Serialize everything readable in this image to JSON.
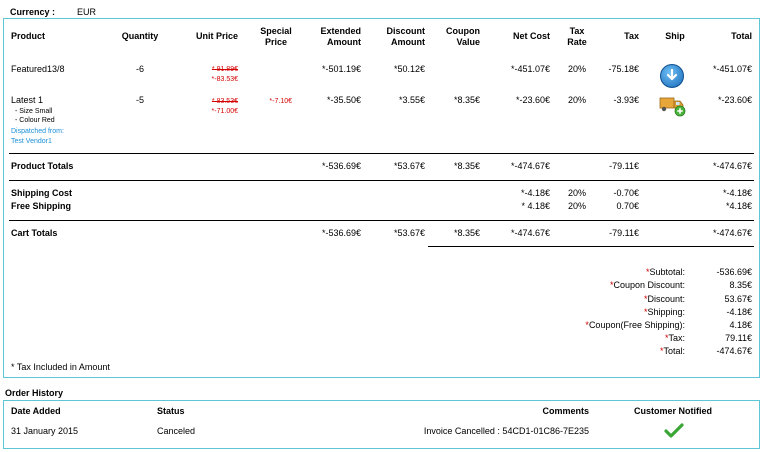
{
  "currency": {
    "label": "Currency :",
    "value": "EUR"
  },
  "headers": {
    "product": "Product",
    "quantity": "Quantity",
    "unit_price": "Unit Price",
    "special_price_1": "Special",
    "special_price_2": "Price",
    "extended_1": "Extended",
    "extended_2": "Amount",
    "discount_1": "Discount",
    "discount_2": "Amount",
    "coupon_1": "Coupon",
    "coupon_2": "Value",
    "net_cost": "Net Cost",
    "tax_rate_1": "Tax",
    "tax_rate_2": "Rate",
    "tax": "Tax",
    "ship": "Ship",
    "total": "Total"
  },
  "rows": [
    {
      "product": "Featured13/8",
      "quantity": "-6",
      "unit_price_orig": "* 91.89€",
      "unit_price_new": "*-83.53€",
      "special_price": "",
      "extended": "*-501.19€",
      "discount": "*50.12€",
      "coupon": "",
      "net_cost": "*-451.07€",
      "tax_rate": "20%",
      "tax": "-75.18€",
      "ship_icon": "download-circle-icon",
      "total": "*-451.07€"
    },
    {
      "product": "Latest 1",
      "attr1": "- Size Small",
      "attr2": "- Colour Red",
      "dispatched_label": "Dispatched from:",
      "dispatched_vendor": "Test Vendor1",
      "quantity": "-5",
      "unit_price_orig": "* 83.53€",
      "unit_price_new": "*-71.00€",
      "special_price": "*-7.10€",
      "extended": "*-35.50€",
      "discount": "*3.55€",
      "coupon": "*8.35€",
      "net_cost": "*-23.60€",
      "tax_rate": "20%",
      "tax": "-3.93€",
      "ship_icon": "truck-add-icon",
      "total": "*-23.60€"
    }
  ],
  "product_totals": {
    "label": "Product Totals",
    "extended": "*-536.69€",
    "discount": "*53.67€",
    "coupon": "*8.35€",
    "net_cost": "*-474.67€",
    "tax": "-79.11€",
    "total": "*-474.67€"
  },
  "shipping": {
    "cost_label": "Shipping Cost",
    "cost_net": "*-4.18€",
    "cost_rate": "20%",
    "cost_tax": "-0.70€",
    "cost_total": "*-4.18€",
    "free_label": "Free Shipping",
    "free_net": "* 4.18€",
    "free_rate": "20%",
    "free_tax": "0.70€",
    "free_total": "*4.18€"
  },
  "cart_totals": {
    "label": "Cart Totals",
    "extended": "*-536.69€",
    "discount": "*53.67€",
    "coupon": "*8.35€",
    "net_cost": "*-474.67€",
    "tax": "-79.11€",
    "total": "*-474.67€"
  },
  "summary": [
    {
      "label": "Subtotal:",
      "value": "-536.69€"
    },
    {
      "label": "Coupon Discount:",
      "value": "8.35€"
    },
    {
      "label": "Discount:",
      "value": "53.67€"
    },
    {
      "label": "Shipping:",
      "value": "-4.18€"
    },
    {
      "label": "Coupon(Free Shipping):",
      "value": "4.18€"
    },
    {
      "label": "Tax:",
      "value": "79.11€"
    },
    {
      "label": "Total:",
      "value": "-474.67€"
    }
  ],
  "tax_note": "* Tax Included in Amount",
  "order_history": {
    "title": "Order History",
    "headers": {
      "date": "Date Added",
      "status": "Status",
      "comments": "Comments",
      "notified": "Customer Notified"
    },
    "rows": [
      {
        "date": "31 January 2015",
        "status": "Canceled",
        "comments": "Invoice Cancelled : 54CD1-01C86-7E235",
        "notified_icon": "checkmark-icon"
      }
    ]
  },
  "colors": {
    "border": "#5fc6d6",
    "red": "#d40000",
    "link": "#1a8fd8",
    "check": "#3aa635"
  }
}
